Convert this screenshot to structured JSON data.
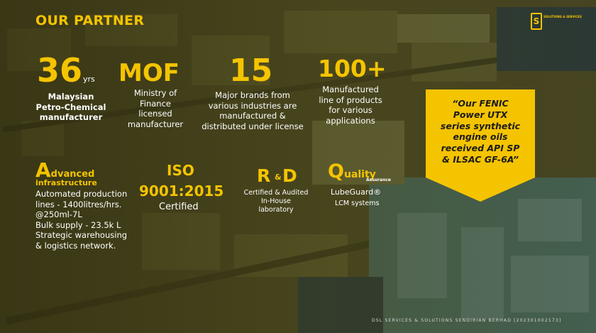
{
  "header": {
    "title": "OUR PARTNER"
  },
  "logo": {
    "letter": "S",
    "text": "SOLUTIONS & SERVICES"
  },
  "stats": [
    {
      "value": "36",
      "suffix": "yrs",
      "lines": [
        "Malaysian",
        "Petro-Chemical",
        "manufacturer"
      ]
    },
    {
      "value": "MOF",
      "lines": [
        "Ministry of",
        "Finance",
        "licensed",
        "manufacturer"
      ]
    },
    {
      "value": "15",
      "lines": [
        "Major brands from",
        "various industries are",
        "manufactured &",
        "distributed under license"
      ]
    },
    {
      "value": "100+",
      "lines": [
        "Manufactured",
        "line of products",
        "for various",
        "applications"
      ]
    }
  ],
  "advanced": {
    "initial": "A",
    "rest": "dvanced",
    "sub": "infrastructure",
    "lines": [
      "Automated production",
      "lines - 1400litres/hrs.",
      "@250ml-7L",
      "Bulk supply - 23.5k L",
      "Strategic warehousing",
      "& logistics network."
    ]
  },
  "iso": {
    "line1": "ISO",
    "line2": "9001:2015",
    "caption": "Certified"
  },
  "rd": {
    "r": "R",
    "amp": "&",
    "d": "D",
    "lines": [
      "Certified & Audited",
      "In-House",
      "laboratory"
    ]
  },
  "quality": {
    "initial": "Q",
    "rest": "uality",
    "assurance": "Assurance",
    "product": "LubeGuard®",
    "caption": "LCM systems"
  },
  "banner": {
    "lines": [
      "“Our FENIC",
      "Power UTX",
      "series synthetic",
      "engine oils",
      "received API SP",
      "& ILSAC GF-6A”"
    ],
    "color": "#f5c400"
  },
  "footer": {
    "text": "DSL SERVICES & SOLUTIONS SENDIRIAN BERHAD [202301002173]"
  },
  "colors": {
    "accent": "#f5c400",
    "text": "#ffffff"
  }
}
